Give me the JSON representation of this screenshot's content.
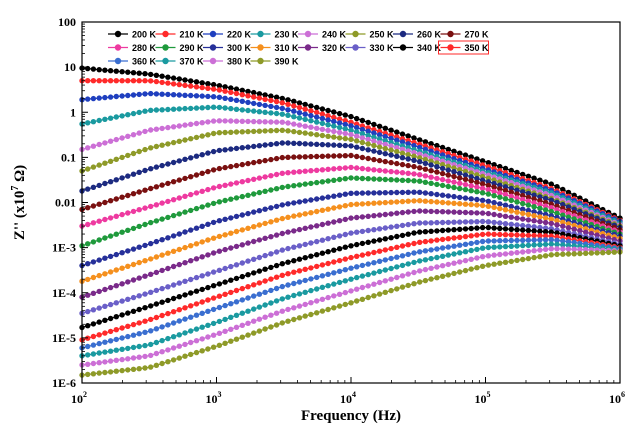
{
  "chart_data": {
    "type": "line",
    "x_scale": "log",
    "y_scale": "log",
    "xlim": [
      100,
      1000000
    ],
    "ylim": [
      1e-06,
      100
    ],
    "grid": false,
    "legend_position": "top",
    "xlabel": "Frequency (Hz)",
    "ylabel_parts": [
      "Z'' (x10",
      "7",
      " Ω)"
    ],
    "x_ticks": [
      {
        "value": 100,
        "base": "10",
        "exp": "2"
      },
      {
        "value": 1000,
        "base": "10",
        "exp": "3"
      },
      {
        "value": 10000,
        "base": "10",
        "exp": "4"
      },
      {
        "value": 100000,
        "base": "10",
        "exp": "5"
      },
      {
        "value": 1000000,
        "base": "10",
        "exp": "6"
      }
    ],
    "y_ticks": [
      {
        "value": 100,
        "label": "100"
      },
      {
        "value": 10,
        "label": "10"
      },
      {
        "value": 1,
        "label": "1"
      },
      {
        "value": 0.1,
        "label": "0.1"
      },
      {
        "value": 0.01,
        "label": "0.01"
      },
      {
        "value": 0.001,
        "label": "1E-3"
      },
      {
        "value": 0.0001,
        "label": "1E-4"
      },
      {
        "value": 1e-05,
        "label": "1E-5"
      },
      {
        "value": 1e-06,
        "label": "1E-6"
      }
    ],
    "x": [
      100,
      316,
      1000,
      3162,
      10000,
      31623,
      100000,
      316228,
      1000000
    ],
    "series": [
      {
        "name": "200 K",
        "color": "#000000",
        "values": [
          9.5,
          7.0,
          4.0,
          2.0,
          0.8,
          0.25,
          0.08,
          0.025,
          0.0045
        ]
      },
      {
        "name": "210 K",
        "color": "#ff2a2a",
        "values": [
          5.0,
          5.0,
          3.2,
          1.6,
          0.6,
          0.2,
          0.065,
          0.02,
          0.004
        ]
      },
      {
        "name": "220 K",
        "color": "#1f3fbf",
        "values": [
          1.9,
          2.6,
          2.2,
          1.2,
          0.5,
          0.17,
          0.055,
          0.018,
          0.0038
        ]
      },
      {
        "name": "230 K",
        "color": "#1a9aa0",
        "values": [
          0.55,
          1.1,
          1.3,
          0.9,
          0.4,
          0.14,
          0.048,
          0.016,
          0.0035
        ]
      },
      {
        "name": "240 K",
        "color": "#cc6fd6",
        "values": [
          0.15,
          0.4,
          0.65,
          0.6,
          0.32,
          0.12,
          0.042,
          0.014,
          0.0032
        ]
      },
      {
        "name": "250 K",
        "color": "#8e9a28",
        "values": [
          0.05,
          0.16,
          0.35,
          0.4,
          0.25,
          0.1,
          0.036,
          0.012,
          0.003
        ]
      },
      {
        "name": "260 K",
        "color": "#1c2a80",
        "values": [
          0.018,
          0.055,
          0.14,
          0.21,
          0.18,
          0.082,
          0.03,
          0.011,
          0.0028
        ]
      },
      {
        "name": "270 K",
        "color": "#7a1010",
        "values": [
          0.007,
          0.02,
          0.055,
          0.1,
          0.11,
          0.06,
          0.025,
          0.009,
          0.0025
        ]
      },
      {
        "name": "280 K",
        "color": "#ee3aa0",
        "values": [
          0.003,
          0.008,
          0.022,
          0.045,
          0.06,
          0.042,
          0.02,
          0.0075,
          0.0022
        ]
      },
      {
        "name": "290 K",
        "color": "#1f9a3c",
        "values": [
          0.0011,
          0.0035,
          0.01,
          0.022,
          0.035,
          0.03,
          0.016,
          0.0062,
          0.002
        ]
      },
      {
        "name": "300 K",
        "color": "#26309a",
        "values": [
          0.0004,
          0.0012,
          0.0038,
          0.009,
          0.016,
          0.017,
          0.011,
          0.005,
          0.0018
        ]
      },
      {
        "name": "310 K",
        "color": "#f5901e",
        "values": [
          0.00018,
          0.00055,
          0.0017,
          0.0045,
          0.009,
          0.011,
          0.0085,
          0.0042,
          0.0016
        ]
      },
      {
        "name": "320 K",
        "color": "#7a2a8a",
        "values": [
          8e-05,
          0.00025,
          0.0008,
          0.0021,
          0.0045,
          0.0065,
          0.0058,
          0.0034,
          0.0014
        ]
      },
      {
        "name": "330 K",
        "color": "#6a5fc8",
        "values": [
          3.5e-05,
          0.0001,
          0.0003,
          0.0009,
          0.0021,
          0.0035,
          0.0038,
          0.0026,
          0.0012
        ]
      },
      {
        "name": "340 K",
        "color": "#000000",
        "values": [
          1.7e-05,
          5e-05,
          0.00015,
          0.00045,
          0.0011,
          0.0022,
          0.0028,
          0.0022,
          0.0011
        ]
      },
      {
        "name": "350 K",
        "color": "#ff2a2a",
        "values": [
          9e-06,
          2.5e-05,
          8e-05,
          0.00025,
          0.0006,
          0.0013,
          0.002,
          0.0018,
          0.001
        ]
      },
      {
        "name": "360 K",
        "color": "#3a6ed0",
        "values": [
          6e-06,
          1.4e-05,
          4.5e-05,
          0.00014,
          0.00035,
          0.0008,
          0.0014,
          0.0015,
          0.00095
        ]
      },
      {
        "name": "370 K",
        "color": "#1a9aa0",
        "values": [
          4e-06,
          7e-06,
          2.2e-05,
          7.5e-05,
          0.0002,
          0.0005,
          0.001,
          0.0012,
          0.0009
        ]
      },
      {
        "name": "380 K",
        "color": "#cc6fd6",
        "values": [
          2.5e-06,
          4e-06,
          1.2e-05,
          4e-05,
          0.00011,
          0.0003,
          0.00065,
          0.00095,
          0.00085
        ]
      },
      {
        "name": "390 K",
        "color": "#8e9a28",
        "values": [
          1.5e-06,
          2.2e-06,
          6.5e-06,
          2.2e-05,
          6e-05,
          0.00017,
          0.0004,
          0.0007,
          0.0008
        ]
      }
    ]
  }
}
